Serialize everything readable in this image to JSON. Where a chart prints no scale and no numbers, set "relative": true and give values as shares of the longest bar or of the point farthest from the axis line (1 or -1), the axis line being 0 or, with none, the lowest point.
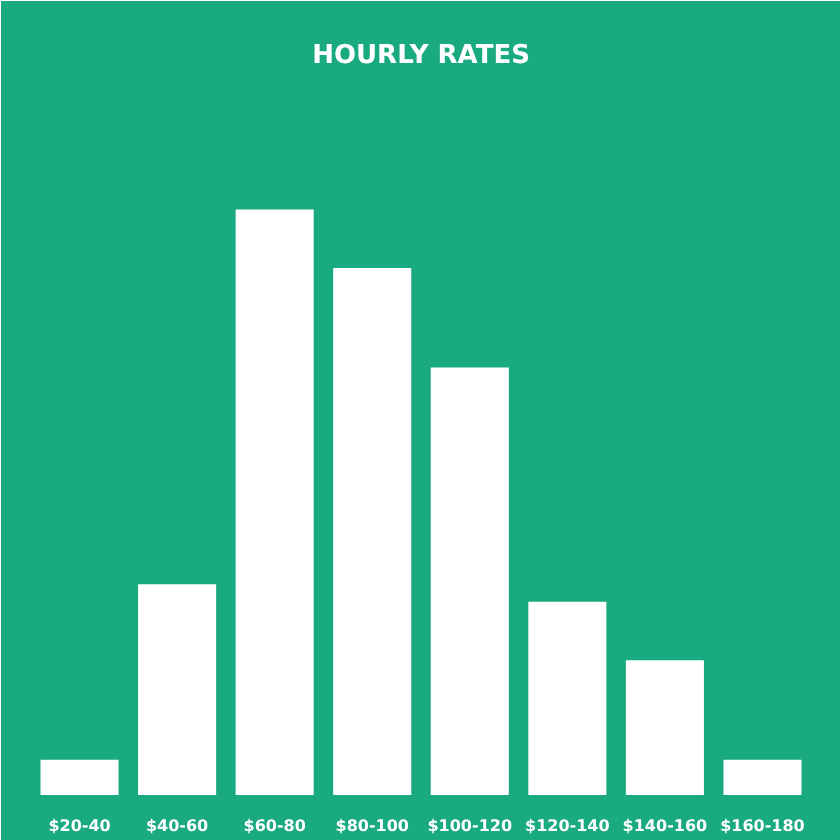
{
  "chart_data": {
    "type": "bar",
    "title": "HOURLY RATES",
    "relative": true,
    "categories": [
      "$20-40",
      "$40-60",
      "$60-80",
      "$80-100",
      "$100-120",
      "$120-140",
      "$140-160",
      "$160-180"
    ],
    "values": [
      0.06,
      0.36,
      1,
      0.9,
      0.73,
      0.33,
      0.23,
      0.06
    ],
    "color": "#ffffff",
    "grid": false
  }
}
